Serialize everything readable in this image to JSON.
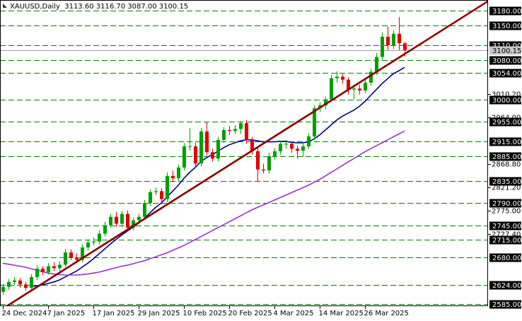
{
  "chart_data": {
    "type": "candlestick",
    "title": "XAUUSD,Daily  3113.60 3116.70 3087.00 3100.15",
    "categories": [
      "24 Dec 2024",
      null,
      null,
      null,
      null,
      null,
      null,
      null,
      "7 Jan 2025",
      null,
      null,
      null,
      null,
      null,
      null,
      null,
      "17 Jan 2025",
      null,
      null,
      null,
      null,
      null,
      null,
      null,
      "29 Jan 2025",
      null,
      null,
      null,
      null,
      null,
      null,
      null,
      "10 Feb 2025",
      null,
      null,
      null,
      null,
      null,
      null,
      null,
      "20 Feb 2025",
      null,
      null,
      null,
      null,
      null,
      null,
      null,
      "4 Mar 2025",
      null,
      null,
      null,
      null,
      null,
      null,
      null,
      "14 Mar 2025",
      null,
      null,
      null,
      null,
      null,
      null,
      null,
      "26 Mar 2025",
      null,
      null,
      null,
      null,
      null,
      null,
      null
    ],
    "open": [
      2610,
      2620,
      2630,
      2633,
      2625,
      2618,
      2640,
      2657,
      2650,
      2662,
      2658,
      2665,
      2690,
      2680,
      2675,
      2700,
      2710,
      2712,
      2728,
      2745,
      2762,
      2748,
      2768,
      2740,
      2755,
      2762,
      2790,
      2812,
      2814,
      2798,
      2845,
      2840,
      2862,
      2905,
      2905,
      2870,
      2935,
      2893,
      2880,
      2918,
      2938,
      2936,
      2940,
      2952,
      2917,
      2895,
      2858,
      2856,
      2885,
      2895,
      2910,
      2910,
      2900,
      2896,
      2905,
      2925,
      2982,
      2988,
      3000,
      3043,
      3046,
      3040,
      3020,
      3022,
      3018,
      3034,
      3056,
      3086,
      3127,
      3110,
      3133,
      3113.6
    ],
    "high": [
      2626,
      2636,
      2640,
      2638,
      2630,
      2646,
      2664,
      2662,
      2668,
      2670,
      2672,
      2697,
      2696,
      2688,
      2706,
      2716,
      2720,
      2734,
      2752,
      2768,
      2772,
      2774,
      2775,
      2760,
      2768,
      2796,
      2818,
      2822,
      2820,
      2852,
      2856,
      2868,
      2912,
      2942,
      2912,
      2942,
      2955,
      2900,
      2924,
      2944,
      2946,
      2948,
      2956,
      2958,
      2924,
      2902,
      2870,
      2892,
      2902,
      2916,
      2918,
      2914,
      2906,
      2912,
      2932,
      2988,
      2994,
      3005,
      3050,
      3057,
      3052,
      3045,
      3030,
      3030,
      3040,
      3062,
      3094,
      3136,
      3148,
      3140,
      3167,
      3116.7
    ],
    "low": [
      2604,
      2614,
      2624,
      2618,
      2612,
      2612,
      2634,
      2644,
      2645,
      2652,
      2652,
      2660,
      2674,
      2668,
      2670,
      2694,
      2704,
      2706,
      2722,
      2740,
      2742,
      2742,
      2733,
      2734,
      2748,
      2756,
      2784,
      2806,
      2792,
      2792,
      2832,
      2834,
      2856,
      2896,
      2862,
      2864,
      2886,
      2874,
      2874,
      2912,
      2928,
      2930,
      2930,
      2910,
      2888,
      2833,
      2850,
      2850,
      2878,
      2888,
      2900,
      2892,
      2880,
      2884,
      2900,
      2920,
      2974,
      2980,
      2996,
      3034,
      3032,
      3010,
      3000,
      3010,
      3012,
      3028,
      3050,
      3080,
      3100,
      3102,
      3100,
      3087
    ],
    "close": [
      2620,
      2630,
      2633,
      2625,
      2618,
      2640,
      2657,
      2650,
      2662,
      2658,
      2665,
      2690,
      2680,
      2675,
      2700,
      2710,
      2712,
      2728,
      2745,
      2762,
      2748,
      2768,
      2740,
      2755,
      2762,
      2790,
      2812,
      2814,
      2798,
      2845,
      2840,
      2862,
      2905,
      2905,
      2870,
      2935,
      2893,
      2880,
      2918,
      2938,
      2936,
      2940,
      2952,
      2917,
      2895,
      2858,
      2856,
      2885,
      2895,
      2910,
      2910,
      2900,
      2896,
      2905,
      2925,
      2982,
      2988,
      3000,
      3043,
      3046,
      3040,
      3020,
      3022,
      3018,
      3034,
      3056,
      3086,
      3127,
      3110,
      3133,
      3114,
      3100.15
    ],
    "up_color": "#00a000",
    "down_color": "#e00000",
    "overlays": [
      {
        "color": "#000080",
        "values": [
          null,
          null,
          null,
          null,
          null,
          2622,
          2622,
          2624,
          2627,
          2630,
          2634,
          2640,
          2646,
          2652,
          2660,
          2668,
          2677,
          2687,
          2697,
          2707,
          2716,
          2725,
          2733,
          2741,
          2749,
          2759,
          2770,
          2781,
          2790,
          2802,
          2814,
          2826,
          2840,
          2852,
          2862,
          2874,
          2882,
          2888,
          2895,
          2902,
          2908,
          2912,
          2916,
          2918,
          2918,
          2916,
          2914,
          2914,
          2914,
          2915,
          2915,
          2913,
          2912,
          2912,
          2914,
          2920,
          2928,
          2938,
          2948,
          2958,
          2966,
          2972,
          2978,
          2986,
          2996,
          3008,
          3020,
          3032,
          3042,
          3052,
          3058,
          3065
        ]
      },
      {
        "color": "#9933cc",
        "values": [
          2668,
          2666,
          2664,
          2662,
          2660,
          2657,
          2654,
          2651,
          2648,
          2646,
          2645,
          2644,
          2644,
          2644,
          2645,
          2646,
          2648,
          2650,
          2653,
          2656,
          2659,
          2662,
          2664,
          2667,
          2670,
          2673,
          2677,
          2681,
          2685,
          2689,
          2694,
          2699,
          2704,
          2710,
          2716,
          2722,
          2728,
          2734,
          2740,
          2746,
          2752,
          2758,
          2764,
          2770,
          2776,
          2781,
          2786,
          2791,
          2796,
          2801,
          2806,
          2811,
          2816,
          2821,
          2826,
          2832,
          2838,
          2845,
          2852,
          2859,
          2866,
          2873,
          2880,
          2887,
          2894,
          2900,
          2906,
          2912,
          2918,
          2924,
          2930,
          2936
        ]
      }
    ],
    "trendline": {
      "color": "#8b0000",
      "x": [
        0,
        71
      ],
      "values": [
        2576,
        3092
      ]
    },
    "ylim": [
      2581,
      3201.5
    ],
    "yticks": [
      {
        "value": 3010.2,
        "label": "3010.20"
      },
      {
        "value": 2964,
        "label": "2964.00"
      },
      {
        "value": 2868.8,
        "label": "2868.80"
      },
      {
        "value": 2821.2,
        "label": "2821.20"
      },
      {
        "value": 2775,
        "label": "2775.00"
      },
      {
        "value": 2727.4,
        "label": "2727.40"
      }
    ],
    "levels": [
      {
        "value": 3180,
        "label": "3180.00"
      },
      {
        "value": 3150,
        "label": "3150.00"
      },
      {
        "value": 3110,
        "label": "3110.00"
      },
      {
        "value": 3080,
        "label": "3080.00"
      },
      {
        "value": 3054,
        "label": "3054.00"
      },
      {
        "value": 3000,
        "label": "3000.00"
      },
      {
        "value": 2955,
        "label": "2955.00"
      },
      {
        "value": 2915,
        "label": "2915.00"
      },
      {
        "value": 2885,
        "label": "2885.00"
      },
      {
        "value": 2835,
        "label": "2835.00"
      },
      {
        "value": 2790,
        "label": "2790.00"
      },
      {
        "value": 2745,
        "label": "2745.00"
      },
      {
        "value": 2715,
        "label": "2715.00"
      },
      {
        "value": 2680,
        "label": "2680.00"
      },
      {
        "value": 2624,
        "label": "2624.00"
      },
      {
        "value": 2585,
        "label": "2585.00"
      }
    ],
    "level_color": "#008000",
    "last_price": {
      "value": 3100.15,
      "label": "3100.15"
    },
    "grid": false
  }
}
